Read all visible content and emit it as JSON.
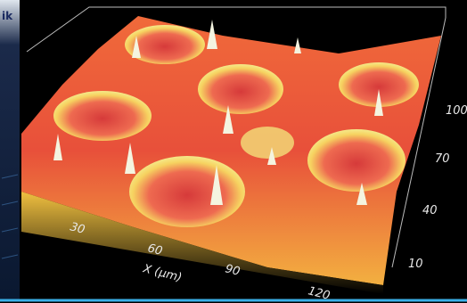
{
  "left_panel": {
    "text": "ik"
  },
  "x_axis": {
    "label": "X (µm)",
    "ticks": [
      "30",
      "60",
      "90",
      "120"
    ]
  },
  "y_axis": {
    "ticks": [
      "10",
      "40",
      "70",
      "100"
    ]
  }
}
